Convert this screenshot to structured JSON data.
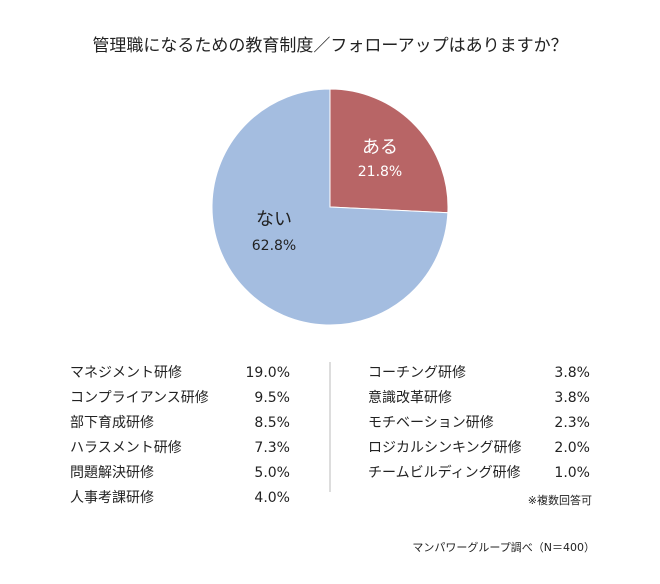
{
  "chart_data": {
    "type": "pie",
    "title": "管理職になるための教育制度／フォローアップはありますか？",
    "categories": [
      "ある",
      "ない"
    ],
    "values": [
      21.8,
      62.8
    ],
    "value_labels": [
      "21.8%",
      "62.8%"
    ],
    "colors": [
      "#b86566",
      "#a4bde0"
    ]
  },
  "breakdown": {
    "left": [
      [
        "マネジメント研修",
        "19.0%"
      ],
      [
        "コンプライアンス研修",
        "9.5%"
      ],
      [
        "部下育成研修",
        "8.5%"
      ],
      [
        "ハラスメント研修",
        "7.3%"
      ],
      [
        "問題解決研修",
        "5.0%"
      ],
      [
        "人事考課研修",
        "4.0%"
      ]
    ],
    "right": [
      [
        "コーチング研修",
        "3.8%"
      ],
      [
        "意識改革研修",
        "3.8%"
      ],
      [
        "モチベーション研修",
        "2.3%"
      ],
      [
        "ロジカルシンキング研修",
        "2.0%"
      ],
      [
        "チームビルディング研修",
        "1.0%"
      ]
    ],
    "note": "※複数回答可"
  },
  "source": "マンパワーグループ調べ（N＝400）"
}
